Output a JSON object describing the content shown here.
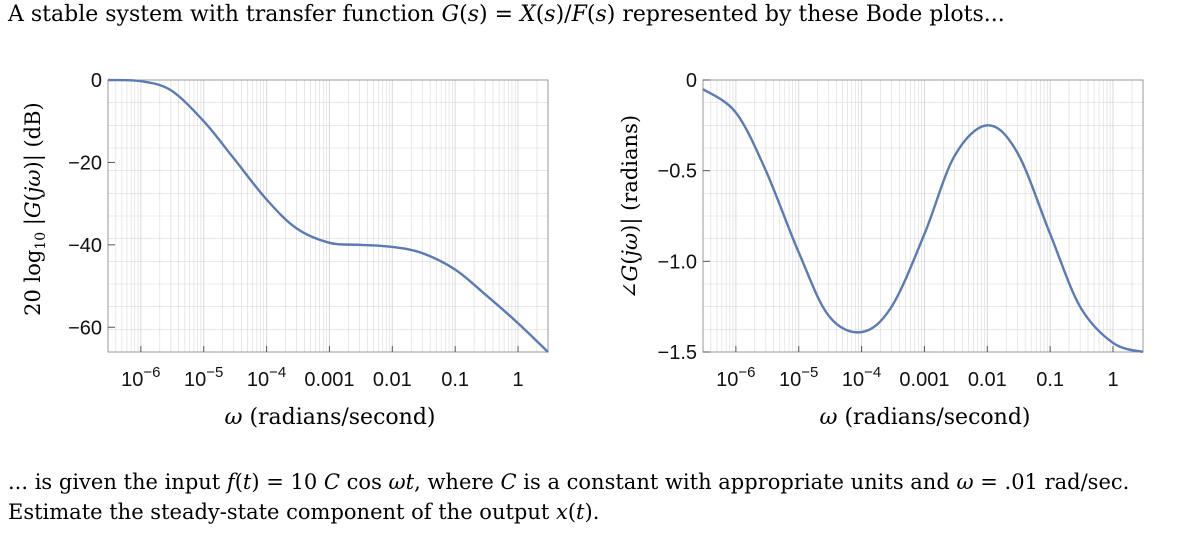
{
  "intro": "A stable system with transfer function G(s) = X(s)/F(s) represented by these Bode plots...",
  "question_line1": "... is given the input f(t) = 10 C cos ωt, where C is a constant with appropriate units and ω = .01 rad/sec.",
  "question_line2": "Estimate the steady-state component of the output x(t).",
  "colors": {
    "curve": "#5a7bb6",
    "grid": "#d9d9d9",
    "frame": "#999999"
  },
  "chart_data": [
    {
      "type": "line",
      "ylabel": "20 log10 |G(jω)| (dB)",
      "xlabel": "ω (radians/second)",
      "x_scale": "log",
      "xlim": [
        3e-07,
        3
      ],
      "ylim": [
        -66,
        0
      ],
      "x_tick_labels": [
        "10^-6",
        "10^-5",
        "10^-4",
        "0.001",
        "0.01",
        "0.1",
        "1"
      ],
      "x_tick_values": [
        1e-06,
        1e-05,
        0.0001,
        0.001,
        0.01,
        0.1,
        1
      ],
      "y_tick_labels": [
        "0",
        "-20",
        "-40",
        "-60"
      ],
      "y_tick_values": [
        0,
        -20,
        -40,
        -60
      ],
      "series": [
        {
          "x": [
            3e-07,
            1e-06,
            3e-06,
            1e-05,
            3e-05,
            0.0001,
            0.0003,
            0.001,
            0.003,
            0.01,
            0.03,
            0.1,
            0.3,
            1,
            3
          ],
          "y": [
            0,
            -0.3,
            -2.5,
            -10,
            -19,
            -29,
            -36,
            -39.5,
            -40,
            -40.5,
            -42,
            -46,
            -52,
            -59,
            -66
          ]
        }
      ]
    },
    {
      "type": "line",
      "ylabel": "∠G(jω)| (radians)",
      "xlabel": "ω (radians/second)",
      "x_scale": "log",
      "xlim": [
        3e-07,
        3
      ],
      "ylim": [
        -1.5,
        0
      ],
      "x_tick_labels": [
        "10^-6",
        "10^-5",
        "10^-4",
        "0.001",
        "0.01",
        "0.1",
        "1"
      ],
      "x_tick_values": [
        1e-06,
        1e-05,
        0.0001,
        0.001,
        0.01,
        0.1,
        1
      ],
      "y_tick_labels": [
        "0",
        "-0.5",
        "-1.0",
        "-1.5"
      ],
      "y_tick_values": [
        0,
        -0.5,
        -1.0,
        -1.5
      ],
      "series": [
        {
          "x": [
            3e-07,
            1e-06,
            3e-06,
            1e-05,
            3e-05,
            0.0001,
            0.0003,
            0.001,
            0.003,
            0.01,
            0.03,
            0.1,
            0.3,
            1,
            3
          ],
          "y": [
            -0.05,
            -0.18,
            -0.5,
            -0.95,
            -1.3,
            -1.39,
            -1.25,
            -0.85,
            -0.42,
            -0.25,
            -0.4,
            -0.85,
            -1.25,
            -1.45,
            -1.5
          ]
        }
      ]
    }
  ]
}
